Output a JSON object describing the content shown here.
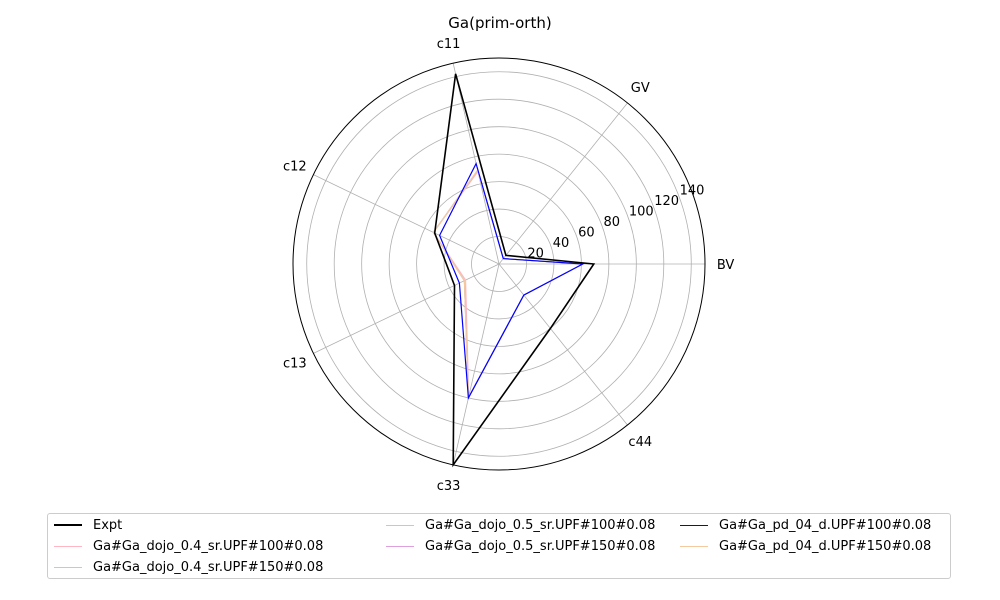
{
  "chart_data": {
    "type": "radar",
    "title": "Ga(prim-orth)",
    "axes": [
      "BV",
      "GV",
      "c11",
      "c12",
      "c13",
      "c33",
      "c44"
    ],
    "radial_ticks": [
      20,
      40,
      60,
      80,
      100,
      120,
      140
    ],
    "rlim": [
      0,
      150
    ],
    "grid": true,
    "legend_position": "bottom",
    "series": [
      {
        "name": "Expt",
        "color": "#000000",
        "values": [
          69,
          8,
          142,
          52,
          36,
          150,
          60
        ]
      },
      {
        "name": "Ga#Ga_dojo_0.4_sr.UPF#100#0.08",
        "color": "#ffb6c1",
        "values": [
          61,
          5,
          69,
          53,
          27,
          99,
          29
        ]
      },
      {
        "name": "Ga#Ga_dojo_0.4_sr.UPF#150#0.08",
        "color": "#9fd8e0",
        "values": [
          61,
          5,
          70,
          53,
          28,
          100,
          29
        ]
      },
      {
        "name": "Ga#Ga_dojo_0.5_sr.UPF#100#0.08",
        "color": "#90ee90",
        "values": [
          61,
          5,
          70,
          53,
          28,
          100,
          29
        ]
      },
      {
        "name": "Ga#Ga_dojo_0.5_sr.UPF#150#0.08",
        "color": "#dda0dd",
        "values": [
          61,
          5,
          70,
          53,
          28,
          100,
          29
        ]
      },
      {
        "name": "Ga#Ga_pd_04_d.UPF#100#0.08",
        "color": "#0000ff",
        "values": [
          61,
          5,
          75,
          48,
          32,
          100,
          29
        ]
      },
      {
        "name": "Ga#Ga_pd_04_d.UPF#150#0.08",
        "color": "#f5c9a0",
        "values": [
          61,
          5,
          70,
          53,
          28,
          100,
          29
        ]
      }
    ]
  }
}
